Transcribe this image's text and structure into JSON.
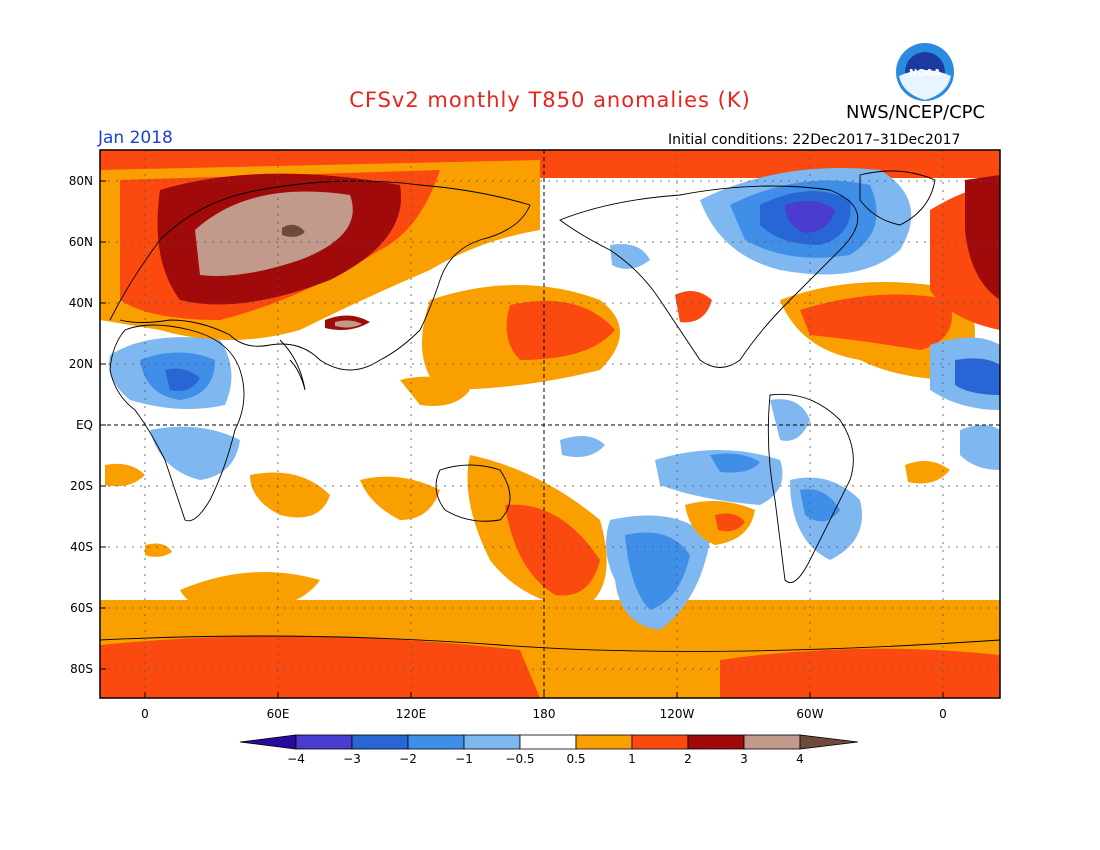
{
  "title": "CFSv2 monthly T850 anomalies (K)",
  "month": "Jan 2018",
  "agency": "NWS/NCEP/CPC",
  "logo_text": "NOAA",
  "initial_conditions": "Initial conditions: 22Dec2017–31Dec2017",
  "y_labels": [
    "80N",
    "60N",
    "40N",
    "20N",
    "EQ",
    "20S",
    "40S",
    "60S",
    "80S"
  ],
  "x_labels": [
    "0",
    "60E",
    "120E",
    "180",
    "120W",
    "60W",
    "0"
  ],
  "colorbar": {
    "labels": [
      "−4",
      "−3",
      "−2",
      "−1",
      "−0.5",
      "0.5",
      "1",
      "2",
      "3",
      "4"
    ],
    "colors": [
      "#2a0a9c",
      "#4a3ccf",
      "#2866d6",
      "#3f8fe8",
      "#7fb7f0",
      "#ffffff",
      "#f9a000",
      "#fa4a10",
      "#a00a0a",
      "#c29a8c",
      "#6e4a3a"
    ]
  }
}
